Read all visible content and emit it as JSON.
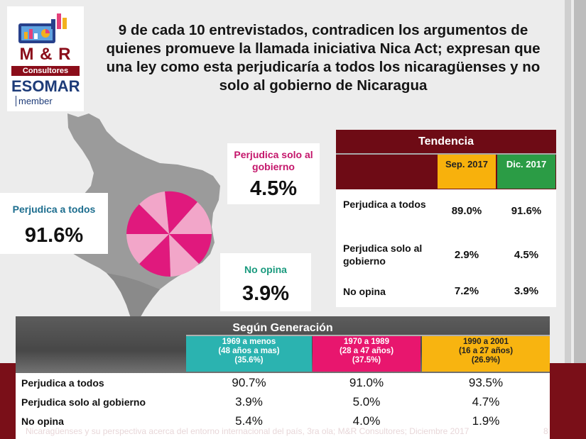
{
  "logo": {
    "brand": "M & R",
    "consultores": "Consultores",
    "esomar": "ESOMAR",
    "member": "member"
  },
  "title": "9 de cada 10 entrevistados, contradicen los argumentos de quienes promueve la llamada iniciativa Nica Act; expresan que una ley como esta perjudicaría a todos los nicaragüenses y no solo al gobierno de Nicaragua",
  "callouts": {
    "gobierno": {
      "label": "Perjudica solo al gobierno",
      "value": "4.5%"
    },
    "todos": {
      "label": "Perjudica a todos",
      "value": "91.6%"
    },
    "no_opina": {
      "label": "No opina",
      "value": "3.9%"
    }
  },
  "tendencia": {
    "title": "Tendencia",
    "col1": "Sep. 2017",
    "col2": "Dic. 2017",
    "rows": [
      {
        "label": "Perjudica a todos",
        "v1": "89.0%",
        "v2": "91.6%"
      },
      {
        "label": "Perjudica solo al gobierno",
        "v1": "2.9%",
        "v2": "4.5%"
      },
      {
        "label": "No opina",
        "v1": "7.2%",
        "v2": "3.9%"
      }
    ]
  },
  "generacion": {
    "title": "Según Generación",
    "cols": [
      {
        "l1": "1969 a menos",
        "l2": "(48 años a mas)",
        "l3": "(35.6%)"
      },
      {
        "l1": "1970 a 1989",
        "l2": "(28 a 47 años)",
        "l3": "(37.5%)"
      },
      {
        "l1": "1990 a 2001",
        "l2": "(16 a 27 años)",
        "l3": "(26.9%)"
      }
    ],
    "rows": [
      {
        "label": "Perjudica a todos",
        "values": [
          "90.7%",
          "91.0%",
          "93.5%"
        ]
      },
      {
        "label": "Perjudica solo al gobierno",
        "values": [
          "3.9%",
          "5.0%",
          "4.7%"
        ]
      },
      {
        "label": "No opina",
        "values": [
          "5.4%",
          "4.0%",
          "1.9%"
        ]
      }
    ]
  },
  "footer": "Nicaragüenses y su perspectiva acerca del entorno internacional del país, 3ra ola; M&R Consultores; Diciembre 2017",
  "page_number": "8",
  "colors": {
    "brand_red": "#8b0d1a",
    "esomar_blue": "#1d3b78",
    "pie_dark": "#e0197d",
    "pie_light": "#f2a6c9",
    "teal": "#2bb3b0",
    "pink": "#e8166e",
    "amber": "#f8b410",
    "green": "#2b9c45"
  }
}
